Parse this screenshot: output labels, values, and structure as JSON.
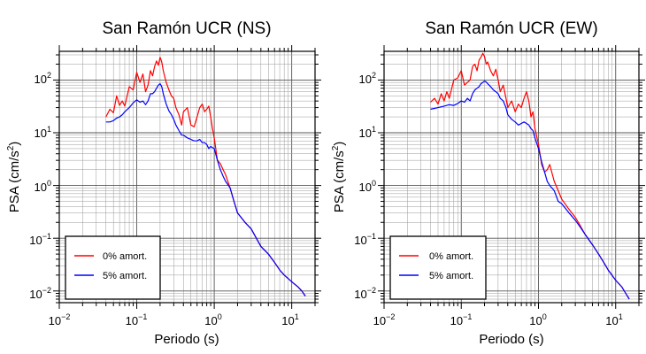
{
  "chart_data": [
    {
      "type": "line",
      "title": "San Ramón UCR (NS)",
      "xlabel": "Periodo (s)",
      "ylabel_main": "PSA (cm/s",
      "ylabel_sup": "2",
      "ylabel_end": ")",
      "xscale": "log",
      "yscale": "log",
      "xlim": [
        0.01,
        20
      ],
      "ylim": [
        0.006,
        350
      ],
      "grid": true,
      "legend_position": "bottom-left",
      "x_ticks": [
        {
          "base": "10",
          "exp": "−2"
        },
        {
          "base": "10",
          "exp": "−1"
        },
        {
          "base": "10",
          "exp": "0"
        },
        {
          "base": "10",
          "exp": "1"
        }
      ],
      "y_ticks": [
        {
          "base": "10",
          "exp": "−2"
        },
        {
          "base": "10",
          "exp": "−1"
        },
        {
          "base": "10",
          "exp": "0"
        },
        {
          "base": "10",
          "exp": "1"
        },
        {
          "base": "10",
          "exp": "2"
        }
      ],
      "series": [
        {
          "name": "0% amort.",
          "color": "#ff0000",
          "x": [
            0.04,
            0.045,
            0.05,
            0.055,
            0.06,
            0.065,
            0.07,
            0.08,
            0.09,
            0.1,
            0.11,
            0.12,
            0.13,
            0.14,
            0.15,
            0.16,
            0.17,
            0.18,
            0.19,
            0.2,
            0.21,
            0.22,
            0.24,
            0.26,
            0.28,
            0.3,
            0.32,
            0.35,
            0.38,
            0.4,
            0.45,
            0.5,
            0.55,
            0.6,
            0.65,
            0.7,
            0.75,
            0.8,
            0.85,
            0.9,
            0.95,
            1.0,
            1.1,
            1.2,
            1.3,
            1.4,
            1.6,
            1.8,
            2.0,
            2.5,
            3.0,
            3.5,
            4.0,
            5.0,
            6.0,
            7.0,
            8.0,
            10.0,
            12.0,
            13.5,
            15.0
          ],
          "y": [
            20,
            28,
            24,
            50,
            33,
            40,
            32,
            75,
            65,
            140,
            90,
            130,
            60,
            80,
            150,
            120,
            180,
            230,
            190,
            270,
            220,
            150,
            90,
            65,
            50,
            45,
            30,
            22,
            14,
            25,
            30,
            14,
            13,
            20,
            30,
            35,
            25,
            28,
            32,
            20,
            12,
            8,
            3.0,
            2.6,
            2.0,
            1.6,
            0.9,
            0.5,
            0.3,
            0.2,
            0.15,
            0.1,
            0.07,
            0.05,
            0.035,
            0.025,
            0.02,
            0.015,
            0.012,
            0.01,
            0.008
          ]
        },
        {
          "name": "5% amort.",
          "color": "#0000ff",
          "x": [
            0.04,
            0.045,
            0.05,
            0.055,
            0.06,
            0.065,
            0.07,
            0.08,
            0.09,
            0.1,
            0.11,
            0.12,
            0.13,
            0.14,
            0.15,
            0.16,
            0.17,
            0.18,
            0.19,
            0.2,
            0.21,
            0.22,
            0.24,
            0.26,
            0.28,
            0.3,
            0.32,
            0.35,
            0.38,
            0.4,
            0.45,
            0.5,
            0.55,
            0.6,
            0.65,
            0.7,
            0.75,
            0.8,
            0.85,
            0.9,
            0.95,
            1.0,
            1.1,
            1.2,
            1.3,
            1.4,
            1.6,
            1.8,
            2.0,
            2.5,
            3.0,
            3.5,
            4.0,
            5.0,
            6.0,
            7.0,
            8.0,
            10.0,
            12.0,
            13.5,
            15.0
          ],
          "y": [
            16,
            16,
            17,
            19,
            20,
            22,
            25,
            30,
            37,
            42,
            38,
            40,
            34,
            40,
            55,
            55,
            60,
            70,
            80,
            85,
            75,
            55,
            35,
            26,
            22,
            18,
            14,
            11,
            9,
            9,
            8,
            7.5,
            7,
            7,
            7.5,
            6.5,
            6.5,
            6.0,
            5.0,
            5.5,
            5.2,
            5.0,
            3.0,
            2.0,
            1.5,
            1.2,
            0.9,
            0.5,
            0.3,
            0.2,
            0.15,
            0.1,
            0.07,
            0.05,
            0.035,
            0.025,
            0.02,
            0.015,
            0.012,
            0.01,
            0.008
          ]
        }
      ]
    },
    {
      "type": "line",
      "title": "San Ramón UCR (EW)",
      "xlabel": "Periodo (s)",
      "ylabel_main": "PSA (cm/s",
      "ylabel_sup": "2",
      "ylabel_end": ")",
      "xscale": "log",
      "yscale": "log",
      "xlim": [
        0.01,
        20
      ],
      "ylim": [
        0.006,
        350
      ],
      "grid": true,
      "legend_position": "bottom-left",
      "x_ticks": [
        {
          "base": "10",
          "exp": "−2"
        },
        {
          "base": "10",
          "exp": "−1"
        },
        {
          "base": "10",
          "exp": "0"
        },
        {
          "base": "10",
          "exp": "1"
        }
      ],
      "y_ticks": [
        {
          "base": "10",
          "exp": "−2"
        },
        {
          "base": "10",
          "exp": "−1"
        },
        {
          "base": "10",
          "exp": "0"
        },
        {
          "base": "10",
          "exp": "1"
        },
        {
          "base": "10",
          "exp": "2"
        }
      ],
      "series": [
        {
          "name": "0% amort.",
          "color": "#ff0000",
          "x": [
            0.04,
            0.045,
            0.05,
            0.055,
            0.06,
            0.065,
            0.07,
            0.08,
            0.09,
            0.1,
            0.11,
            0.12,
            0.13,
            0.14,
            0.15,
            0.16,
            0.17,
            0.18,
            0.19,
            0.2,
            0.21,
            0.22,
            0.24,
            0.26,
            0.28,
            0.3,
            0.32,
            0.35,
            0.38,
            0.4,
            0.45,
            0.5,
            0.55,
            0.6,
            0.65,
            0.7,
            0.75,
            0.8,
            0.85,
            0.9,
            1.0,
            1.1,
            1.2,
            1.3,
            1.4,
            1.6,
            1.8,
            2.0,
            2.5,
            3.0,
            3.5,
            4.0,
            5.0,
            6.0,
            7.0,
            8.0,
            10.0,
            12.0,
            13.5,
            15.0
          ],
          "y": [
            38,
            45,
            35,
            55,
            40,
            60,
            45,
            100,
            110,
            150,
            80,
            90,
            100,
            180,
            200,
            150,
            240,
            270,
            320,
            280,
            200,
            220,
            150,
            120,
            160,
            100,
            60,
            80,
            45,
            30,
            40,
            25,
            35,
            30,
            45,
            60,
            40,
            20,
            25,
            12,
            6,
            2.5,
            1.8,
            2.0,
            2.5,
            1.2,
            0.8,
            0.55,
            0.35,
            0.25,
            0.17,
            0.12,
            0.075,
            0.05,
            0.035,
            0.025,
            0.016,
            0.012,
            0.009,
            0.007
          ]
        },
        {
          "name": "5% amort.",
          "color": "#0000ff",
          "x": [
            0.04,
            0.045,
            0.05,
            0.055,
            0.06,
            0.065,
            0.07,
            0.08,
            0.09,
            0.1,
            0.11,
            0.12,
            0.13,
            0.14,
            0.15,
            0.16,
            0.17,
            0.18,
            0.19,
            0.2,
            0.21,
            0.22,
            0.24,
            0.26,
            0.28,
            0.3,
            0.32,
            0.35,
            0.38,
            0.4,
            0.45,
            0.5,
            0.55,
            0.6,
            0.65,
            0.7,
            0.75,
            0.8,
            0.85,
            0.9,
            1.0,
            1.1,
            1.2,
            1.3,
            1.4,
            1.6,
            1.8,
            2.0,
            2.5,
            3.0,
            3.5,
            4.0,
            5.0,
            6.0,
            7.0,
            8.0,
            10.0,
            12.0,
            13.5,
            15.0
          ],
          "y": [
            28,
            29,
            30,
            31,
            32,
            33,
            34,
            33,
            36,
            40,
            38,
            45,
            40,
            55,
            65,
            70,
            75,
            85,
            90,
            95,
            92,
            85,
            75,
            65,
            60,
            55,
            45,
            40,
            30,
            22,
            18,
            16,
            14,
            15,
            16,
            15,
            14,
            12,
            11,
            8,
            5,
            2.8,
            1.8,
            1.2,
            1.0,
            0.8,
            0.5,
            0.45,
            0.3,
            0.22,
            0.16,
            0.12,
            0.075,
            0.05,
            0.035,
            0.025,
            0.016,
            0.012,
            0.009,
            0.007
          ]
        }
      ]
    }
  ]
}
